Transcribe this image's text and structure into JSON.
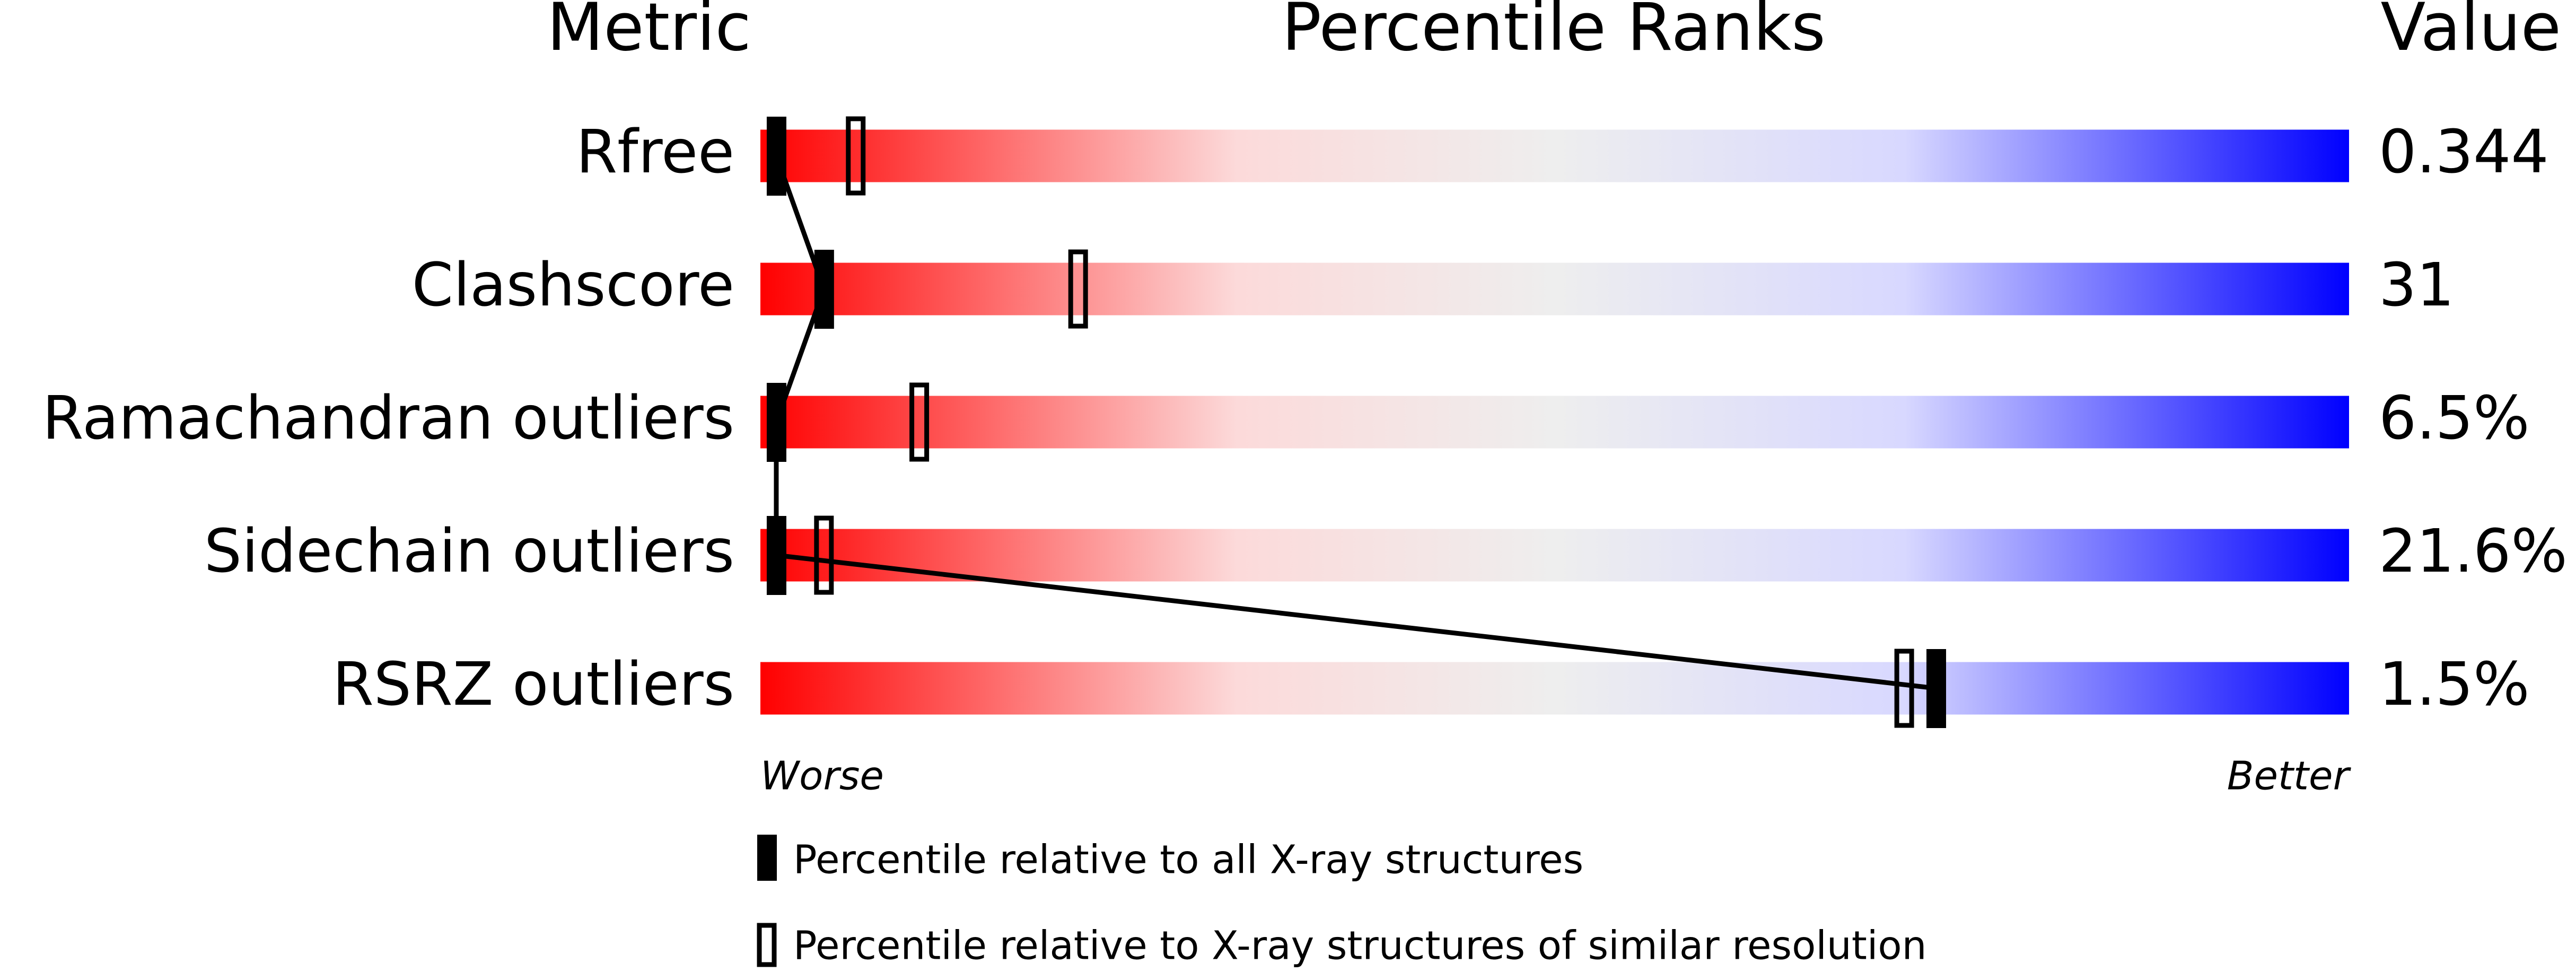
{
  "chart_data": {
    "type": "percentile",
    "headers": {
      "metric": "Metric",
      "ranks": "Percentile Ranks",
      "value": "Value"
    },
    "metrics": [
      "Rfree",
      "Clashscore",
      "Ramachandran outliers",
      "Sidechain outliers",
      "RSRZ outliers"
    ],
    "values": [
      "0.344",
      "31",
      "6.5%",
      "21.6%",
      "1.5%"
    ],
    "series": [
      {
        "name": "Percentile relative to all X-ray structures",
        "color": "#000000",
        "style": "filled",
        "values": [
          1,
          4,
          1,
          1,
          74
        ]
      },
      {
        "name": "Percentile relative to X-ray structures of similar resolution",
        "color": "#000000",
        "style": "open",
        "values": [
          6,
          20,
          10,
          4,
          72
        ]
      }
    ],
    "xlim": [
      0,
      100
    ],
    "worse": "Worse",
    "better": "Better"
  }
}
